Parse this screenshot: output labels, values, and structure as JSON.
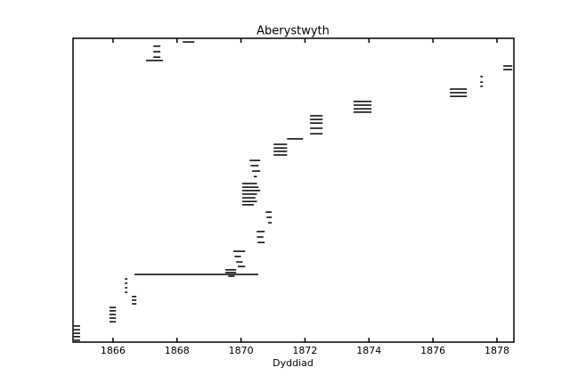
{
  "chart_data": {
    "type": "timeline",
    "title": "Aberystwyth",
    "xlabel": "Dyddiad",
    "color": "#000000",
    "xlim": [
      1864.75,
      1878.53
    ],
    "xticks": [
      1866,
      1868,
      1870,
      1872,
      1874,
      1876,
      1878
    ],
    "ylim": [
      0,
      100
    ],
    "start": [
      1864.78,
      1864.78,
      1864.78,
      1864.78,
      1864.78,
      1865.89,
      1865.89,
      1865.89,
      1865.89,
      1865.89,
      1866.59,
      1866.59,
      1866.59,
      1866.37,
      1866.37,
      1866.37,
      1866.37,
      1866.67,
      1869.51,
      1869.51,
      1869.6,
      1869.76,
      1869.8,
      1869.85,
      1869.9,
      1870.49,
      1870.5,
      1870.52,
      1870.77,
      1870.8,
      1870.85,
      1870.04,
      1870.04,
      1870.04,
      1870.04,
      1870.04,
      1870.04,
      1870.04,
      1870.27,
      1870.3,
      1870.35,
      1870.4,
      1871.02,
      1871.02,
      1871.02,
      1871.02,
      1871.44,
      1872.16,
      1872.16,
      1872.16,
      1872.16,
      1872.16,
      1873.52,
      1873.52,
      1873.52,
      1873.52,
      1876.53,
      1876.53,
      1876.53,
      1877.48,
      1877.48,
      1877.48,
      1878.2,
      1878.2,
      1867.03,
      1867.26,
      1867.26,
      1867.26,
      1868.18
    ],
    "end": [
      1864.97,
      1864.97,
      1864.97,
      1864.97,
      1864.97,
      1866.09,
      1866.09,
      1866.09,
      1866.09,
      1866.09,
      1866.73,
      1866.73,
      1866.73,
      1866.45,
      1866.45,
      1866.45,
      1866.45,
      1870.54,
      1869.85,
      1869.85,
      1869.8,
      1870.13,
      1870.0,
      1870.05,
      1870.13,
      1870.74,
      1870.7,
      1870.74,
      1870.96,
      1870.96,
      1870.96,
      1870.5,
      1870.55,
      1870.6,
      1870.5,
      1870.45,
      1870.5,
      1870.4,
      1870.6,
      1870.55,
      1870.6,
      1870.5,
      1871.44,
      1871.44,
      1871.44,
      1871.44,
      1871.94,
      1872.55,
      1872.55,
      1872.55,
      1872.55,
      1872.55,
      1874.08,
      1874.08,
      1874.08,
      1874.08,
      1877.06,
      1877.06,
      1877.06,
      1877.56,
      1877.56,
      1877.56,
      1878.48,
      1878.48,
      1867.56,
      1867.48,
      1867.48,
      1867.48,
      1868.54
    ],
    "values": [
      5.3,
      4.1,
      2.9,
      1.8,
      0.6,
      11.4,
      10.3,
      9.1,
      7.9,
      6.7,
      15.0,
      13.8,
      12.6,
      20.8,
      19.4,
      17.9,
      16.4,
      22.3,
      23.8,
      22.9,
      21.7,
      29.9,
      28.2,
      26.4,
      24.9,
      36.4,
      34.6,
      32.8,
      42.8,
      41.1,
      39.3,
      52.2,
      51.0,
      49.9,
      48.7,
      47.5,
      46.3,
      45.2,
      59.8,
      58.1,
      56.3,
      54.5,
      65.1,
      63.9,
      62.8,
      61.6,
      66.9,
      74.5,
      73.3,
      72.1,
      70.4,
      68.6,
      79.2,
      78.0,
      76.8,
      75.7,
      83.3,
      82.1,
      80.9,
      87.4,
      85.6,
      84.2,
      90.9,
      89.7,
      92.7,
      97.4,
      95.6,
      93.8,
      98.8
    ]
  }
}
